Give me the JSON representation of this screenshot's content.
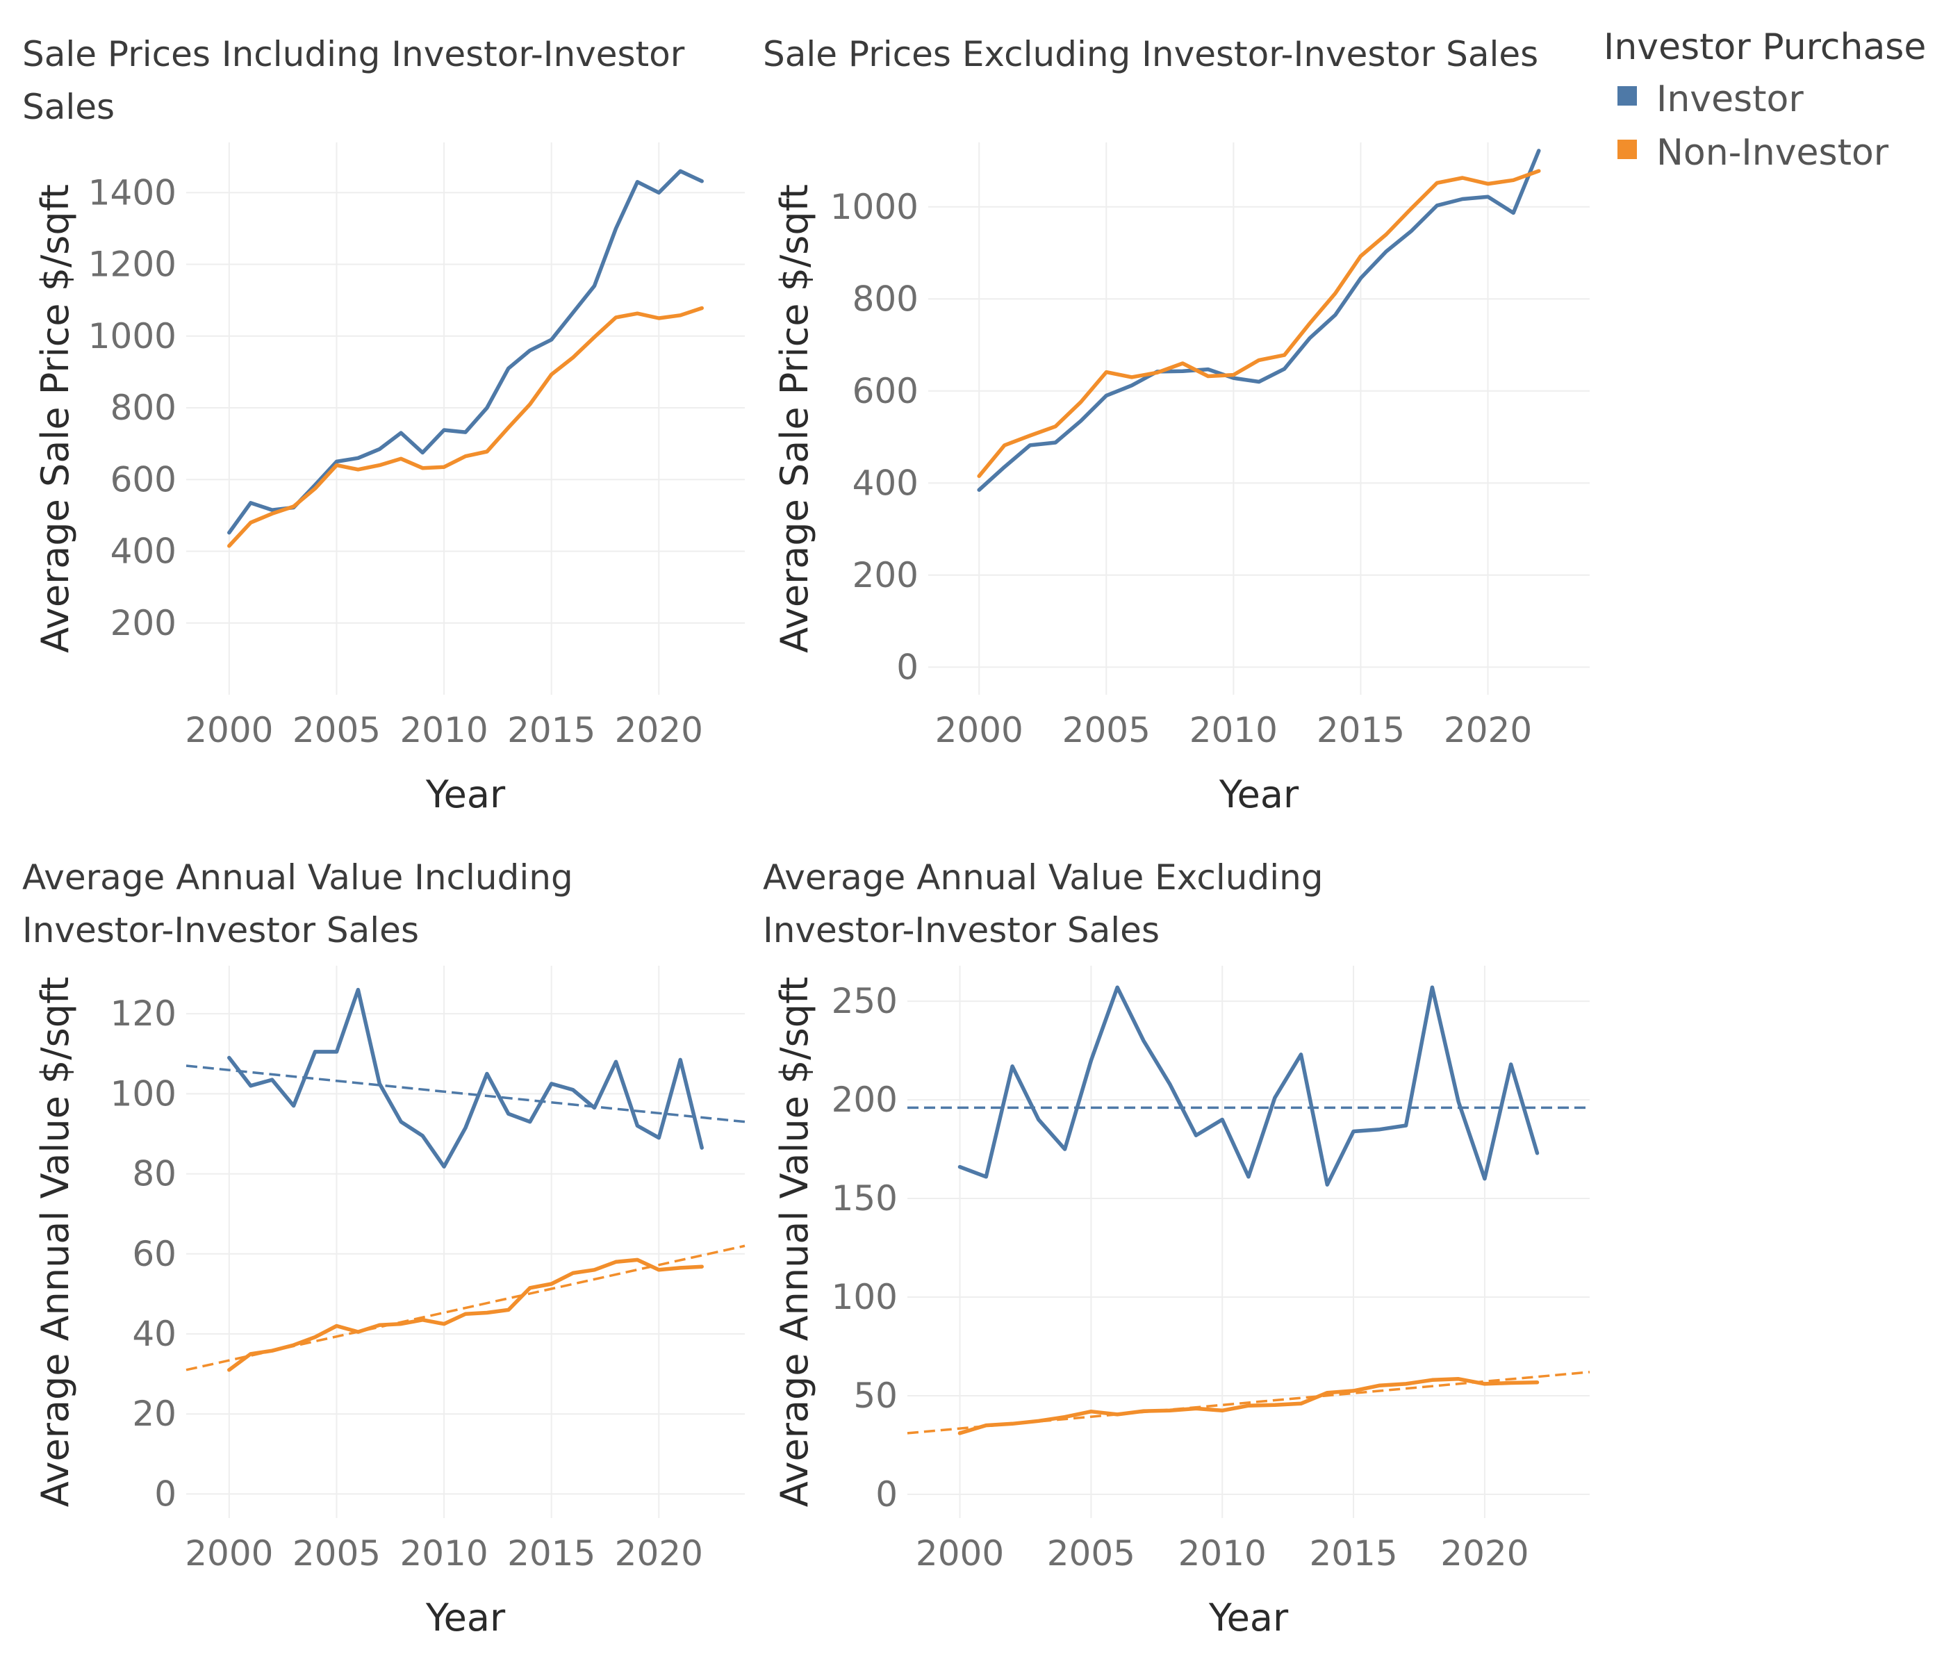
{
  "chart_data": [
    {
      "type": "line",
      "title_lines": [
        "Sale Prices Including Investor-Investor",
        "Sales"
      ],
      "xlabel": "Year",
      "ylabel": "Average Sale Price $/sqft",
      "xticks": [
        "2000",
        "2005",
        "2010",
        "2015",
        "2020"
      ],
      "yticks": [
        "200",
        "400",
        "600",
        "800",
        "1000",
        "1200",
        "1400"
      ],
      "xlim": [
        1998,
        2024
      ],
      "ylim": [
        0,
        1540
      ],
      "x": [
        2000,
        2001,
        2002,
        2003,
        2004,
        2005,
        2006,
        2007,
        2008,
        2009,
        2010,
        2011,
        2012,
        2013,
        2014,
        2015,
        2016,
        2017,
        2018,
        2019,
        2020,
        2021,
        2022
      ],
      "series": [
        {
          "name": "Investor",
          "values": [
            452,
            535,
            515,
            522,
            585,
            650,
            660,
            685,
            730,
            675,
            738,
            732,
            800,
            910,
            960,
            990,
            1065,
            1140,
            1300,
            1430,
            1400,
            1460,
            1432
          ]
        },
        {
          "name": "Non-Investor",
          "values": [
            415,
            480,
            505,
            525,
            575,
            640,
            628,
            640,
            658,
            632,
            635,
            665,
            678,
            745,
            810,
            893,
            940,
            997,
            1052,
            1063,
            1050,
            1058,
            1078
          ]
        }
      ]
    },
    {
      "type": "line",
      "title_lines": [
        "Sale Prices Excluding Investor-Investor Sales"
      ],
      "xlabel": "Year",
      "ylabel": "Average Sale Price $/sqft",
      "xticks": [
        "2000",
        "2005",
        "2010",
        "2015",
        "2020"
      ],
      "yticks": [
        "0",
        "200",
        "400",
        "600",
        "800",
        "1000"
      ],
      "xlim": [
        1998,
        2024
      ],
      "ylim": [
        -60,
        1140
      ],
      "x": [
        2000,
        2001,
        2002,
        2003,
        2004,
        2005,
        2006,
        2007,
        2008,
        2009,
        2010,
        2011,
        2012,
        2013,
        2014,
        2015,
        2016,
        2017,
        2018,
        2019,
        2020,
        2021,
        2022
      ],
      "series": [
        {
          "name": "Investor",
          "values": [
            385,
            435,
            482,
            488,
            535,
            590,
            612,
            642,
            643,
            647,
            628,
            620,
            648,
            715,
            765,
            845,
            903,
            948,
            1003,
            1017,
            1022,
            987,
            1122
          ]
        },
        {
          "name": "Non-Investor",
          "values": [
            415,
            482,
            503,
            523,
            576,
            641,
            630,
            640,
            660,
            632,
            635,
            667,
            678,
            747,
            812,
            893,
            940,
            997,
            1052,
            1063,
            1050,
            1058,
            1078
          ]
        }
      ]
    },
    {
      "type": "line",
      "title_lines": [
        "Average Annual Value Including",
        "Investor-Investor Sales"
      ],
      "xlabel": "Year",
      "ylabel": "Average Annual Value $/sqft",
      "xticks": [
        "2000",
        "2005",
        "2010",
        "2015",
        "2020"
      ],
      "yticks": [
        "0",
        "20",
        "40",
        "60",
        "80",
        "100",
        "120"
      ],
      "xlim": [
        1998,
        2024
      ],
      "ylim": [
        -6,
        132
      ],
      "x": [
        2000,
        2001,
        2002,
        2003,
        2004,
        2005,
        2006,
        2007,
        2008,
        2009,
        2010,
        2011,
        2012,
        2013,
        2014,
        2015,
        2016,
        2017,
        2018,
        2019,
        2020,
        2021,
        2022
      ],
      "series": [
        {
          "name": "Investor",
          "values": [
            109,
            102,
            103.5,
            97,
            110.5,
            110.5,
            126,
            102.5,
            93,
            89.5,
            81.8,
            91.5,
            105,
            95,
            93,
            102.5,
            101,
            96.5,
            108,
            92,
            89,
            108.5,
            86.5
          ]
        },
        {
          "name": "Non-Investor",
          "values": [
            31,
            35,
            35.8,
            37.2,
            39.2,
            42,
            40.5,
            42.2,
            42.5,
            43.5,
            42.5,
            45,
            45.3,
            46,
            51.5,
            52.5,
            55.2,
            56,
            58,
            58.5,
            56,
            56.5,
            56.8
          ]
        }
      ],
      "trendlines": [
        {
          "name": "Investor",
          "x": [
            1998,
            2024
          ],
          "values": [
            107,
            93
          ]
        },
        {
          "name": "Non-Investor",
          "x": [
            1998,
            2024
          ],
          "values": [
            31,
            62
          ]
        }
      ]
    },
    {
      "type": "line",
      "title_lines": [
        "Average Annual Value Excluding",
        "Investor-Investor Sales"
      ],
      "xlabel": "Year",
      "ylabel": "Average Annual Value $/sqft",
      "xticks": [
        "2000",
        "2005",
        "2010",
        "2015",
        "2020"
      ],
      "yticks": [
        "0",
        "50",
        "100",
        "150",
        "200",
        "250"
      ],
      "xlim": [
        1998,
        2024
      ],
      "ylim": [
        -12,
        268
      ],
      "x": [
        2000,
        2001,
        2002,
        2003,
        2004,
        2005,
        2006,
        2007,
        2008,
        2009,
        2010,
        2011,
        2012,
        2013,
        2014,
        2015,
        2016,
        2017,
        2018,
        2019,
        2020,
        2021,
        2022
      ],
      "series": [
        {
          "name": "Investor",
          "values": [
            166,
            161,
            217,
            190,
            175,
            220,
            257,
            230,
            208,
            182,
            190,
            161,
            201,
            223,
            157,
            184,
            185,
            187,
            257,
            199,
            160,
            218,
            173
          ]
        },
        {
          "name": "Non-Investor",
          "values": [
            31,
            35,
            35.8,
            37.2,
            39.2,
            42,
            40.5,
            42.2,
            42.5,
            43.5,
            42.5,
            45,
            45.3,
            46,
            51.5,
            52.5,
            55.2,
            56,
            58,
            58.5,
            56,
            56.5,
            56.8
          ]
        }
      ],
      "trendlines": [
        {
          "name": "Investor",
          "x": [
            1998,
            2024
          ],
          "values": [
            196,
            196
          ]
        },
        {
          "name": "Non-Investor",
          "x": [
            1998,
            2024
          ],
          "values": [
            31,
            62
          ]
        }
      ]
    }
  ],
  "legend": {
    "title": "Investor Purchase",
    "items": [
      {
        "label": "Investor",
        "color": "#4e79a7"
      },
      {
        "label": "Non-Investor",
        "color": "#f28e2b"
      }
    ]
  }
}
